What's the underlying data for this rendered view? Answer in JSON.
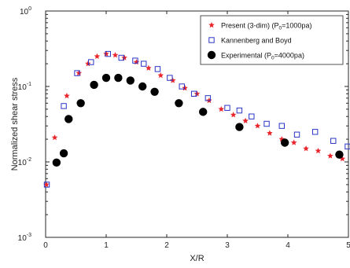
{
  "chart_data": {
    "type": "scatter",
    "xlabel": "X/R",
    "ylabel": "Normalized shear stress",
    "xlim": [
      0,
      5
    ],
    "ylim": [
      0.001,
      1
    ],
    "yscale": "log",
    "grid": false,
    "legend_position": "top-right",
    "x_ticks": [
      "0",
      "1",
      "2",
      "3",
      "4",
      "5"
    ],
    "y_ticks": [
      {
        "base": "10",
        "exp": "0",
        "value": 1
      },
      {
        "base": "10",
        "exp": "-1",
        "value": 0.1
      },
      {
        "base": "10",
        "exp": "-2",
        "value": 0.01
      },
      {
        "base": "10",
        "exp": "-3",
        "value": 0.001
      }
    ],
    "series": [
      {
        "name_main": "Present (3-dim) (P",
        "name_sub": "0",
        "name_tail": "=1000pa)",
        "marker": "star",
        "color": "#e8262b",
        "points": [
          [
            0.0,
            0.005
          ],
          [
            0.15,
            0.021
          ],
          [
            0.35,
            0.075
          ],
          [
            0.55,
            0.15
          ],
          [
            0.7,
            0.2
          ],
          [
            0.85,
            0.25
          ],
          [
            1.0,
            0.27
          ],
          [
            1.15,
            0.26
          ],
          [
            1.3,
            0.24
          ],
          [
            1.5,
            0.21
          ],
          [
            1.7,
            0.175
          ],
          [
            1.9,
            0.14
          ],
          [
            2.1,
            0.12
          ],
          [
            2.3,
            0.095
          ],
          [
            2.5,
            0.08
          ],
          [
            2.7,
            0.065
          ],
          [
            2.9,
            0.05
          ],
          [
            3.1,
            0.042
          ],
          [
            3.3,
            0.035
          ],
          [
            3.5,
            0.03
          ],
          [
            3.7,
            0.024
          ],
          [
            3.9,
            0.02
          ],
          [
            4.1,
            0.018
          ],
          [
            4.3,
            0.015
          ],
          [
            4.5,
            0.014
          ],
          [
            4.7,
            0.012
          ],
          [
            4.9,
            0.011
          ]
        ]
      },
      {
        "name_main": "Kannenberg and Boyd",
        "marker": "square",
        "color": "#2a35c7",
        "points": [
          [
            0.02,
            0.005
          ],
          [
            0.3,
            0.055
          ],
          [
            0.52,
            0.15
          ],
          [
            0.75,
            0.21
          ],
          [
            1.03,
            0.27
          ],
          [
            1.25,
            0.24
          ],
          [
            1.48,
            0.22
          ],
          [
            1.62,
            0.2
          ],
          [
            1.85,
            0.17
          ],
          [
            2.05,
            0.13
          ],
          [
            2.25,
            0.1
          ],
          [
            2.45,
            0.08
          ],
          [
            2.68,
            0.07
          ],
          [
            3.0,
            0.052
          ],
          [
            3.2,
            0.048
          ],
          [
            3.4,
            0.04
          ],
          [
            3.65,
            0.032
          ],
          [
            3.9,
            0.03
          ],
          [
            4.15,
            0.023
          ],
          [
            4.45,
            0.025
          ],
          [
            4.75,
            0.019
          ],
          [
            5.0,
            0.016
          ]
        ]
      },
      {
        "name_main": "Experimental (P",
        "name_sub": "0",
        "name_tail": "=4000pa)",
        "marker": "circle",
        "color": "#000000",
        "points": [
          [
            0.18,
            0.0098
          ],
          [
            0.3,
            0.013
          ],
          [
            0.38,
            0.037
          ],
          [
            0.58,
            0.06
          ],
          [
            0.8,
            0.105
          ],
          [
            1.0,
            0.13
          ],
          [
            1.2,
            0.13
          ],
          [
            1.4,
            0.12
          ],
          [
            1.6,
            0.1
          ],
          [
            1.8,
            0.085
          ],
          [
            2.2,
            0.06
          ],
          [
            2.6,
            0.046
          ],
          [
            3.2,
            0.029
          ],
          [
            3.95,
            0.018
          ],
          [
            4.85,
            0.0125
          ]
        ]
      }
    ]
  }
}
